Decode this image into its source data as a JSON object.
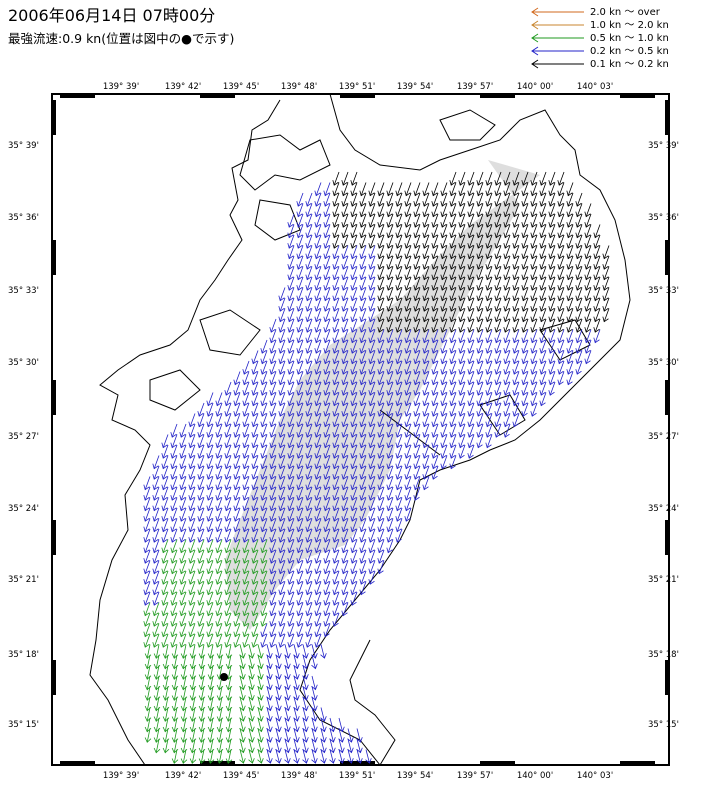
{
  "header": {
    "title": "2006年06月14日 07時00分",
    "subtitle": "最強流速:0.9 kn(位置は図中の●で示す)"
  },
  "legend": [
    {
      "label": "2.0 kn 〜 over",
      "color": "#d2691e"
    },
    {
      "label": "1.0 kn 〜 2.0 kn",
      "color": "#c8862f"
    },
    {
      "label": "0.5 kn 〜 1.0 kn",
      "color": "#1f9a1f"
    },
    {
      "label": "0.2 kn 〜 0.5 kn",
      "color": "#2323c8"
    },
    {
      "label": "0.1 kn 〜 0.2 kn",
      "color": "#000000"
    }
  ],
  "map": {
    "lon_labels": [
      "139° 39'",
      "139° 42'",
      "139° 45'",
      "139° 48'",
      "139° 51'",
      "139° 54'",
      "139° 57'",
      "140° 00'",
      "140° 03'"
    ],
    "lat_labels": [
      "35° 39'",
      "35° 36'",
      "35° 33'",
      "35° 30'",
      "35° 27'",
      "35° 24'",
      "35° 21'",
      "35° 18'",
      "35° 15'"
    ],
    "strongest_current_marker": "max-current-dot"
  }
}
